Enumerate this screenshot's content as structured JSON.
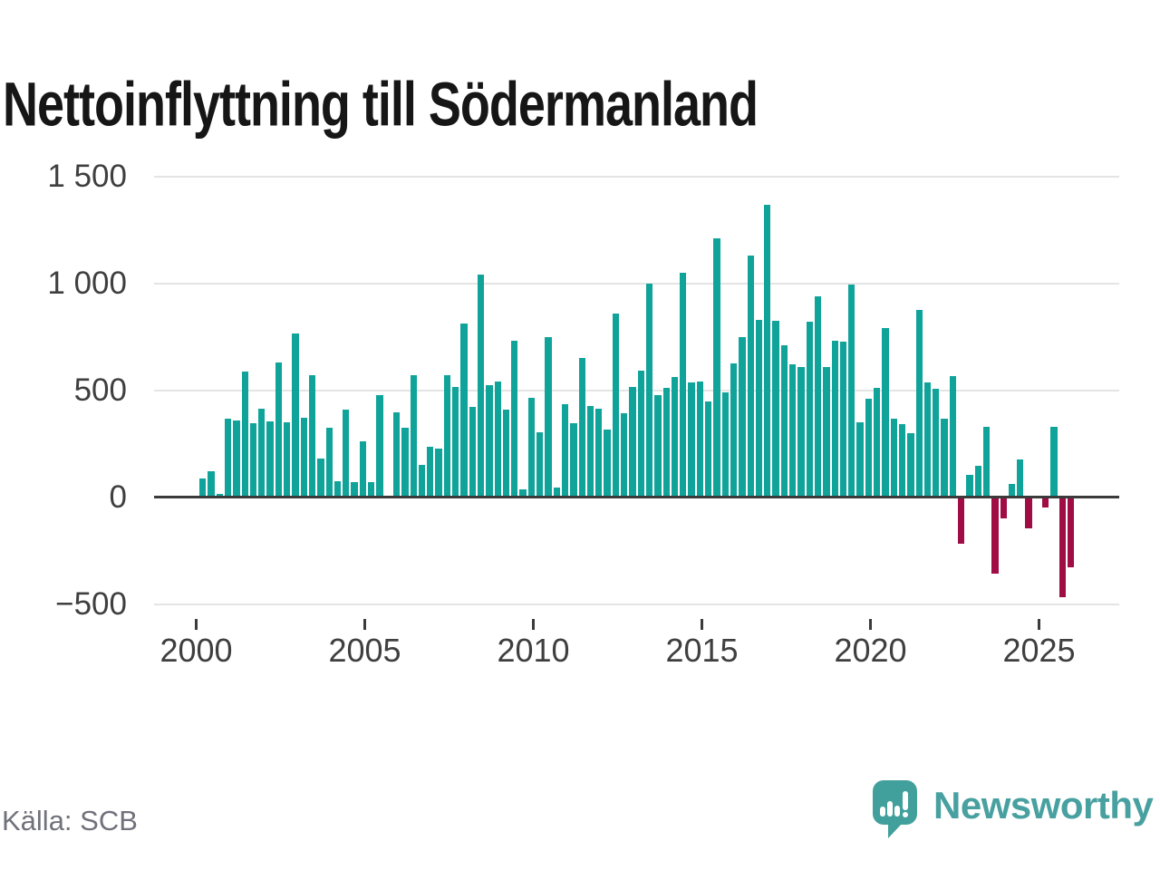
{
  "title": "Nettoinflyttning till Södermanland",
  "source": "Källa: SCB",
  "brand": {
    "name": "Newsworthy",
    "icon": "bar-chart-speech-bubble-icon"
  },
  "colors": {
    "positive_bar": "#0fa39a",
    "negative_bar": "#a00d45",
    "axis_line": "#3b3b3b",
    "gridline": "#e4e4e4",
    "tick_text": "#3f3f3f",
    "muted_text": "#71717c",
    "brand_teal": "#41a09b",
    "title_text": "#161616"
  },
  "chart_data": {
    "type": "bar",
    "title": "Nettoinflyttning till Södermanland",
    "xlabel": "",
    "ylabel": "",
    "grid": true,
    "legend": false,
    "ylim": [
      -500,
      1500
    ],
    "yticks": [
      {
        "value": 1500,
        "label": "1 500"
      },
      {
        "value": 1000,
        "label": "1 000"
      },
      {
        "value": 500,
        "label": "500"
      },
      {
        "value": 0,
        "label": "0"
      },
      {
        "value": -500,
        "label": "−500"
      }
    ],
    "xticks": [
      {
        "year": 2000,
        "label": "2000"
      },
      {
        "year": 2005,
        "label": "2005"
      },
      {
        "year": 2010,
        "label": "2010"
      },
      {
        "year": 2015,
        "label": "2015"
      },
      {
        "year": 2020,
        "label": "2020"
      },
      {
        "year": 2025,
        "label": "2025"
      }
    ],
    "categories": [
      "2000 Q1",
      "2000 Q2",
      "2000 Q3",
      "2000 Q4",
      "2001 Q1",
      "2001 Q2",
      "2001 Q3",
      "2001 Q4",
      "2002 Q1",
      "2002 Q2",
      "2002 Q3",
      "2002 Q4",
      "2003 Q1",
      "2003 Q2",
      "2003 Q3",
      "2003 Q4",
      "2004 Q1",
      "2004 Q2",
      "2004 Q3",
      "2004 Q4",
      "2005 Q1",
      "2005 Q2",
      "2005 Q3",
      "2005 Q4",
      "2006 Q1",
      "2006 Q2",
      "2006 Q3",
      "2006 Q4",
      "2007 Q1",
      "2007 Q2",
      "2007 Q3",
      "2007 Q4",
      "2008 Q1",
      "2008 Q2",
      "2008 Q3",
      "2008 Q4",
      "2009 Q1",
      "2009 Q2",
      "2009 Q3",
      "2009 Q4",
      "2010 Q1",
      "2010 Q2",
      "2010 Q3",
      "2010 Q4",
      "2011 Q1",
      "2011 Q2",
      "2011 Q3",
      "2011 Q4",
      "2012 Q1",
      "2012 Q2",
      "2012 Q3",
      "2012 Q4",
      "2013 Q1",
      "2013 Q2",
      "2013 Q3",
      "2013 Q4",
      "2014 Q1",
      "2014 Q2",
      "2014 Q3",
      "2014 Q4",
      "2015 Q1",
      "2015 Q2",
      "2015 Q3",
      "2015 Q4",
      "2016 Q1",
      "2016 Q2",
      "2016 Q3",
      "2016 Q4",
      "2017 Q1",
      "2017 Q2",
      "2017 Q3",
      "2017 Q4",
      "2018 Q1",
      "2018 Q2",
      "2018 Q3",
      "2018 Q4",
      "2019 Q1",
      "2019 Q2",
      "2019 Q3",
      "2019 Q4",
      "2020 Q1",
      "2020 Q2",
      "2020 Q3",
      "2020 Q4",
      "2021 Q1",
      "2021 Q2",
      "2021 Q3",
      "2021 Q4",
      "2022 Q1",
      "2022 Q2",
      "2022 Q3",
      "2022 Q4",
      "2023 Q1",
      "2023 Q2",
      "2023 Q3",
      "2023 Q4",
      "2024 Q1",
      "2024 Q2",
      "2024 Q3",
      "2024 Q4",
      "2025 Q1",
      "2025 Q2",
      "2025 Q3",
      "2025 Q4"
    ],
    "values": [
      85,
      120,
      15,
      365,
      360,
      585,
      345,
      415,
      355,
      630,
      350,
      765,
      370,
      570,
      180,
      325,
      75,
      410,
      70,
      260,
      70,
      475,
      5,
      395,
      325,
      570,
      150,
      235,
      225,
      570,
      515,
      810,
      420,
      1040,
      525,
      540,
      410,
      730,
      35,
      465,
      305,
      750,
      45,
      435,
      345,
      650,
      425,
      415,
      315,
      860,
      390,
      515,
      590,
      1000,
      475,
      510,
      560,
      1050,
      535,
      540,
      445,
      1210,
      490,
      625,
      750,
      1130,
      830,
      1365,
      825,
      710,
      620,
      610,
      820,
      940,
      610,
      730,
      725,
      995,
      350,
      460,
      510,
      790,
      365,
      340,
      300,
      875,
      535,
      505,
      365,
      565,
      -220,
      105,
      145,
      330,
      -360,
      -100,
      60,
      175,
      -145,
      0,
      -50,
      330,
      -470,
      -330
    ]
  }
}
